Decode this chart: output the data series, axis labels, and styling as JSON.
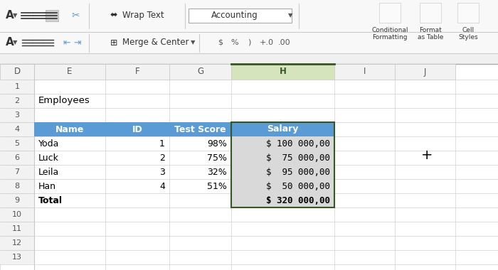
{
  "col_headers": [
    "Name",
    "ID",
    "Test Score",
    "Salary"
  ],
  "rows": [
    [
      "Yoda",
      "1",
      "98%",
      "$ 100 000,00"
    ],
    [
      "Luck",
      "2",
      "75%",
      "$  75 000,00"
    ],
    [
      "Leila",
      "3",
      "32%",
      "$  95 000,00"
    ],
    [
      "Han",
      "4",
      "51%",
      "$  50 000,00"
    ],
    [
      "Total",
      "",
      "",
      "$ 320 000,00"
    ]
  ],
  "col_aligns": [
    "left",
    "right",
    "right",
    "right"
  ],
  "header_bg": "#5B9BD5",
  "header_fg": "#FFFFFF",
  "cell_bg_gray": "#D9D9D9",
  "grid_color": "#C8C8C8",
  "excel_grid_color": "#D0D0D0",
  "col_letter_bg": "#F2F2F2",
  "col_letter_selected_bg": "#D6E4BC",
  "selected_col_letter_fg": "#375623",
  "col_letters": [
    "D",
    "E",
    "F",
    "G",
    "H",
    "I",
    "J"
  ],
  "employees_label": "Employees",
  "toolbar_bg": "#F8F8F8",
  "active_cell_border": "#375623",
  "toolbar_separator": "#CCCCCC",
  "sheet_bg": "#FFFFFF",
  "row_header_bg": "#F2F2F2",
  "cursor_symbol": "+"
}
